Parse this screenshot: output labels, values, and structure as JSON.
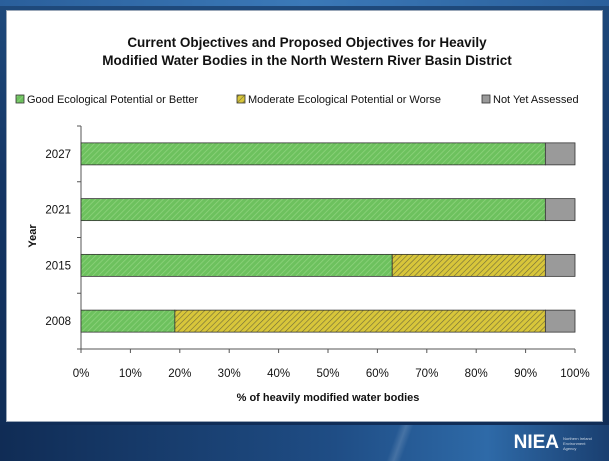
{
  "logo": {
    "mark": "NIEA",
    "subtext": "Northern Ireland Environment Agency"
  },
  "colors": {
    "good": "#6dc15e",
    "moderate": "#d8c63a",
    "not_assessed": "#9a9a9a"
  },
  "chart_data": {
    "type": "bar",
    "orientation": "horizontal",
    "stacked": true,
    "title": "Current Objectives and Proposed Objectives for Heavily Modified Water Bodies in the North Western River Basin District",
    "title_lines": [
      "Current Objectives and Proposed Objectives for Heavily",
      "Modified Water Bodies in the North Western River Basin District"
    ],
    "xlabel": "% of heavily modified water bodies",
    "ylabel": "Year",
    "categories": [
      "2027",
      "2021",
      "2015",
      "2008"
    ],
    "series": [
      {
        "name": "Good Ecological Potential or Better",
        "color": "#6dc15e",
        "pattern": "hatch-green",
        "values": [
          94,
          94,
          63,
          19
        ]
      },
      {
        "name": "Moderate Ecological Potential or Worse",
        "color": "#d8c63a",
        "pattern": "hatch-yellow",
        "values": [
          0,
          0,
          31,
          75
        ]
      },
      {
        "name": "Not Yet Assessed",
        "color": "#9a9a9a",
        "pattern": "solid-grey",
        "values": [
          6,
          6,
          6,
          6
        ]
      }
    ],
    "xlim": [
      0,
      100
    ],
    "xticks": [
      "0%",
      "10%",
      "20%",
      "30%",
      "40%",
      "50%",
      "60%",
      "70%",
      "80%",
      "90%",
      "100%"
    ],
    "legend_position": "top",
    "grid": false
  }
}
